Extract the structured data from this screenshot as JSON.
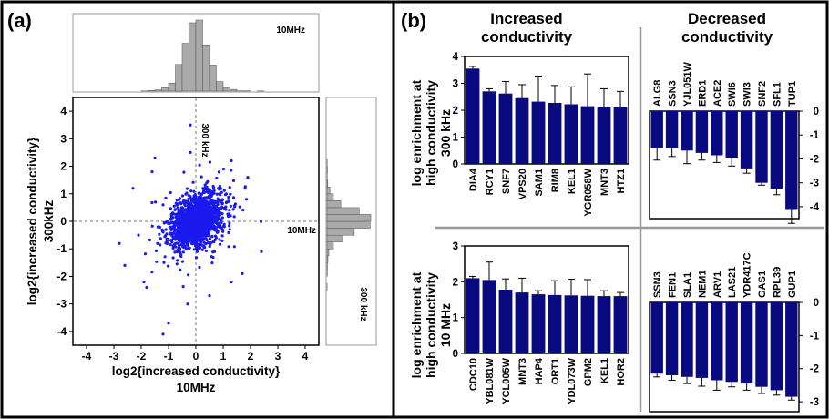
{
  "panel_a": {
    "label": "(a)",
    "top_hist_label": "10MHz",
    "right_hist_label": "300 kHz",
    "vline_label": "300 kHz",
    "hline_label": "10MHz",
    "xlabel_main": "log2{increased conductivity}",
    "xlabel_sub": "10MHz",
    "ylabel_main": "log2{increased conductivity}",
    "ylabel_sub": "300kHz",
    "ticks": [
      "-4",
      "-3",
      "-2",
      "-1",
      "0",
      "1",
      "2",
      "3",
      "4"
    ]
  },
  "panel_b": {
    "label": "(b)",
    "col_head_left": [
      "Increased",
      "conductivity"
    ],
    "col_head_right": [
      "Decreased",
      "conductivity"
    ],
    "row_label_top": [
      "log enrichment at",
      "high conductivity",
      "300 kHz"
    ],
    "row_label_bottom": [
      "log enrichment at",
      "high conductivity",
      "10 MHz"
    ]
  },
  "colors": {
    "bar": "#0a0a80",
    "scatter": "#1a1aee",
    "hist": "#aaaaaa",
    "divider": "#999999"
  },
  "chart_data": [
    {
      "type": "scatter",
      "title": "",
      "xlabel": "log2{increased conductivity} 10MHz",
      "ylabel": "log2{increased conductivity} 300kHz",
      "xlim": [
        -4.5,
        4.5
      ],
      "ylim": [
        -4.5,
        4.5
      ],
      "note": "dense cloud of points centred at (0, 0), sd about 0.5 on both axes, points read approximately",
      "points": [
        [
          -0.2,
          3.5
        ],
        [
          -1.2,
          -4.1
        ],
        [
          -1.0,
          -3.7
        ],
        [
          -1.8,
          -2.4
        ],
        [
          -1.9,
          -2.2
        ],
        [
          -2.6,
          -1.6
        ],
        [
          -2.8,
          -0.8
        ],
        [
          1.9,
          1.6
        ],
        [
          -1.5,
          2.3
        ],
        [
          -2.3,
          1.2
        ],
        [
          1.3,
          -2.2
        ],
        [
          1.7,
          -1.9
        ],
        [
          2.4,
          -1.1
        ],
        [
          -0.3,
          -3.0
        ],
        [
          0.5,
          -2.7
        ],
        [
          -2.1,
          -0.5
        ],
        [
          1.3,
          2.2
        ],
        [
          -0.2,
          2.5
        ],
        [
          -1.6,
          1.8
        ],
        [
          1.8,
          1.2
        ]
      ]
    },
    {
      "type": "bar",
      "title": "Increased conductivity",
      "ylabel": "log enrichment at high conductivity 300 kHz",
      "ylim": [
        0,
        4
      ],
      "categories": [
        "DIA4",
        "RCY1",
        "SNF7",
        "VPS20",
        "SAM1",
        "RIM8",
        "KEL1",
        "YGR058W",
        "MNT3",
        "HTZ1"
      ],
      "values": [
        3.55,
        2.7,
        2.62,
        2.45,
        2.32,
        2.27,
        2.22,
        2.15,
        2.1,
        2.1
      ],
      "errors": [
        0.08,
        0.1,
        0.45,
        0.5,
        0.95,
        0.65,
        0.65,
        1.2,
        0.7,
        0.6
      ]
    },
    {
      "type": "bar",
      "title": "Decreased conductivity",
      "ylabel": "log enrichment at high conductivity 300 kHz",
      "ylim": [
        -4.5,
        0
      ],
      "categories": [
        "ALG8",
        "SSN3",
        "YJL051W",
        "ERD1",
        "ACE2",
        "SWI6",
        "SWI3",
        "SNF2",
        "SFL1",
        "TUP1"
      ],
      "values": [
        -1.55,
        -1.55,
        -1.65,
        -1.75,
        -1.85,
        -1.95,
        -2.4,
        -3.0,
        -3.25,
        -4.1
      ],
      "errors": [
        0.5,
        0.35,
        0.55,
        0.3,
        0.3,
        0.35,
        0.2,
        0.1,
        0.25,
        0.6
      ]
    },
    {
      "type": "bar",
      "title": "Increased conductivity",
      "ylabel": "log enrichment at high conductivity 10 MHz",
      "ylim": [
        0,
        3
      ],
      "categories": [
        "CDC10",
        "YBL081W",
        "YCL005W",
        "MNT3",
        "HAP4",
        "ORT1",
        "YDL073W",
        "GPM2",
        "KEL1",
        "HOR2"
      ],
      "values": [
        2.1,
        2.05,
        1.78,
        1.7,
        1.65,
        1.63,
        1.62,
        1.61,
        1.6,
        1.6
      ],
      "errors": [
        0.05,
        0.5,
        0.3,
        0.4,
        0.1,
        0.4,
        0.45,
        0.45,
        0.15,
        0.1
      ]
    },
    {
      "type": "bar",
      "title": "Decreased conductivity",
      "ylabel": "log enrichment at high conductivity 10 MHz",
      "ylim": [
        -3.3,
        0
      ],
      "categories": [
        "SSN3",
        "FEN1",
        "SLA1",
        "NEM1",
        "ARV1",
        "LAS21",
        "YDR417C",
        "GAS1",
        "RPL39",
        "GUP1"
      ],
      "values": [
        -2.15,
        -2.2,
        -2.25,
        -2.28,
        -2.35,
        -2.4,
        -2.45,
        -2.55,
        -2.65,
        -2.85
      ],
      "errors": [
        0.1,
        0.15,
        0.2,
        0.25,
        0.3,
        0.15,
        0.2,
        0.2,
        0.15,
        0.1
      ]
    }
  ]
}
